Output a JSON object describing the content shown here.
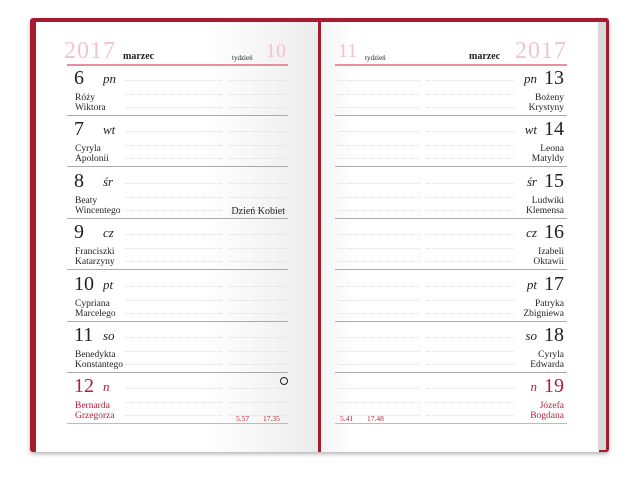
{
  "left": {
    "year": "2017",
    "month": "marzec",
    "week_label": "tydzień",
    "week": "10",
    "days": [
      {
        "num": "6",
        "dn": "pn",
        "names": [
          "Róży",
          "Wiktora"
        ]
      },
      {
        "num": "7",
        "dn": "wt",
        "names": [
          "Cyryla",
          "Apolonii"
        ]
      },
      {
        "num": "8",
        "dn": "śr",
        "names": [
          "Beaty",
          "Wincentego"
        ],
        "holiday": "Dzień Kobiet"
      },
      {
        "num": "9",
        "dn": "cz",
        "names": [
          "Franciszki",
          "Katarzyny"
        ]
      },
      {
        "num": "10",
        "dn": "pt",
        "names": [
          "Cypriana",
          "Marcelego"
        ]
      },
      {
        "num": "11",
        "dn": "so",
        "names": [
          "Benedykta",
          "Konstantego"
        ]
      },
      {
        "num": "12",
        "dn": "n",
        "names": [
          "Bernarda",
          "Grzegorza"
        ],
        "sunday": true,
        "moon": "full-moon-icon",
        "sunrise": "5.57",
        "sunset": "17.35"
      }
    ]
  },
  "right": {
    "year": "2017",
    "month": "marzec",
    "week_label": "tydzień",
    "week": "11",
    "days": [
      {
        "num": "13",
        "dn": "pn",
        "names": [
          "Bożeny",
          "Krystyny"
        ]
      },
      {
        "num": "14",
        "dn": "wt",
        "names": [
          "Leona",
          "Matyldy"
        ]
      },
      {
        "num": "15",
        "dn": "śr",
        "names": [
          "Ludwiki",
          "Klemensa"
        ]
      },
      {
        "num": "16",
        "dn": "cz",
        "names": [
          "Izabeli",
          "Oktawii"
        ]
      },
      {
        "num": "17",
        "dn": "pt",
        "names": [
          "Patryka",
          "Zbigniewa"
        ]
      },
      {
        "num": "18",
        "dn": "so",
        "names": [
          "Cyryla",
          "Edwarda"
        ]
      },
      {
        "num": "19",
        "dn": "n",
        "names": [
          "Józefa",
          "Bogdana"
        ],
        "sunday": true,
        "sunrise": "5.41",
        "sunset": "17.48"
      }
    ]
  },
  "colors": {
    "cover": "#a51c30",
    "sunday": "#b01e38",
    "header_line": "#e58fa3"
  }
}
